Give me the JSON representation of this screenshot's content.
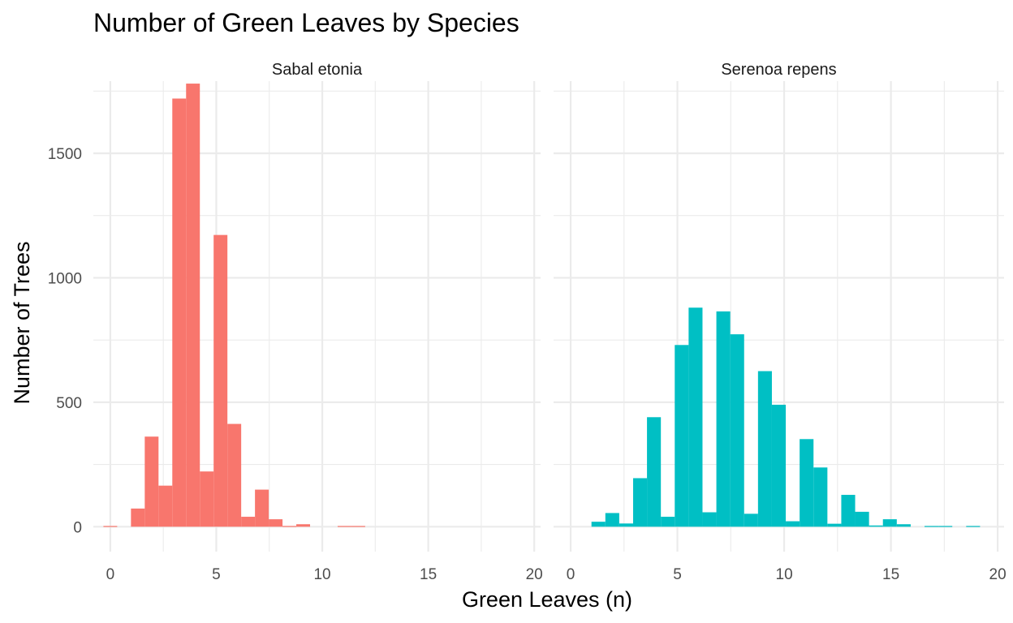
{
  "chart_data": {
    "type": "bar",
    "title": "Number of Green Leaves by Species",
    "xlabel": "Green Leaves (n)",
    "ylabel": "Number of Trees",
    "xlim": [
      -0.8,
      20.3
    ],
    "ylim": [
      -100,
      1790
    ],
    "x_ticks": [
      0,
      5,
      10,
      15,
      20
    ],
    "y_ticks": [
      0,
      500,
      1000,
      1500
    ],
    "grid": true,
    "legend": "none",
    "bin_width": 0.65,
    "panels": [
      {
        "name": "Sabal etonia",
        "color": "#F8766D",
        "bins": [
          {
            "x": 0.0,
            "count": 3
          },
          {
            "x": 1.3,
            "count": 73
          },
          {
            "x": 1.95,
            "count": 362
          },
          {
            "x": 2.6,
            "count": 165
          },
          {
            "x": 3.25,
            "count": 1720
          },
          {
            "x": 3.9,
            "count": 1780
          },
          {
            "x": 4.55,
            "count": 222
          },
          {
            "x": 5.2,
            "count": 1172
          },
          {
            "x": 5.85,
            "count": 413
          },
          {
            "x": 6.5,
            "count": 40
          },
          {
            "x": 7.15,
            "count": 149
          },
          {
            "x": 7.8,
            "count": 30
          },
          {
            "x": 8.45,
            "count": 3
          },
          {
            "x": 9.1,
            "count": 10
          },
          {
            "x": 11.05,
            "count": 3
          },
          {
            "x": 11.7,
            "count": 3
          }
        ]
      },
      {
        "name": "Serenoa repens",
        "color": "#00BFC4",
        "bins": [
          {
            "x": 1.3,
            "count": 20
          },
          {
            "x": 1.95,
            "count": 55
          },
          {
            "x": 2.6,
            "count": 13
          },
          {
            "x": 3.25,
            "count": 195
          },
          {
            "x": 3.9,
            "count": 440
          },
          {
            "x": 4.55,
            "count": 40
          },
          {
            "x": 5.2,
            "count": 730
          },
          {
            "x": 5.85,
            "count": 880
          },
          {
            "x": 6.5,
            "count": 58
          },
          {
            "x": 7.15,
            "count": 865
          },
          {
            "x": 7.8,
            "count": 773
          },
          {
            "x": 8.45,
            "count": 52
          },
          {
            "x": 9.1,
            "count": 625
          },
          {
            "x": 9.75,
            "count": 490
          },
          {
            "x": 10.4,
            "count": 22
          },
          {
            "x": 11.05,
            "count": 352
          },
          {
            "x": 11.7,
            "count": 238
          },
          {
            "x": 12.35,
            "count": 12
          },
          {
            "x": 13.0,
            "count": 128
          },
          {
            "x": 13.65,
            "count": 60
          },
          {
            "x": 14.3,
            "count": 5
          },
          {
            "x": 14.95,
            "count": 30
          },
          {
            "x": 15.6,
            "count": 10
          },
          {
            "x": 16.9,
            "count": 3
          },
          {
            "x": 17.55,
            "count": 3
          },
          {
            "x": 18.85,
            "count": 3
          }
        ]
      }
    ]
  }
}
